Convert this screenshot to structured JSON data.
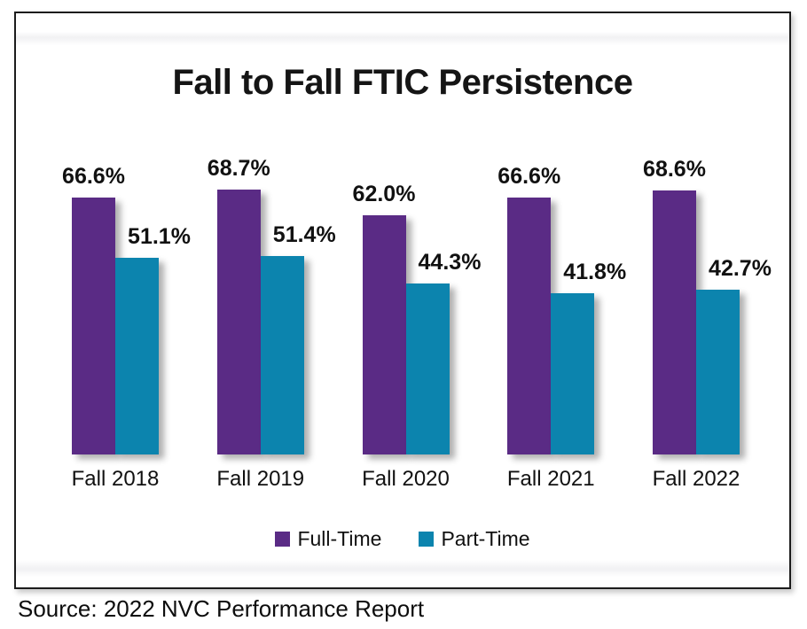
{
  "chart_data": {
    "type": "bar",
    "title": "Fall to Fall FTIC Persistence",
    "categories": [
      "Fall 2018",
      "Fall 2019",
      "Fall 2020",
      "Fall 2021",
      "Fall 2022"
    ],
    "series": [
      {
        "name": "Full-Time",
        "color": "#5A2B85",
        "values": [
          66.6,
          68.7,
          62.0,
          66.6,
          68.6
        ],
        "labels": [
          "66.6%",
          "68.7%",
          "62.0%",
          "66.6%",
          "68.6%"
        ]
      },
      {
        "name": "Part-Time",
        "color": "#0C84AE",
        "values": [
          51.1,
          51.4,
          44.3,
          41.8,
          42.7
        ],
        "labels": [
          "51.1%",
          "51.4%",
          "44.3%",
          "41.8%",
          "42.7%"
        ]
      }
    ],
    "legend": {
      "position": "bottom",
      "items": [
        "Full-Time",
        "Part-Time"
      ]
    },
    "grid": false,
    "y_axis_visible": false,
    "x_axis_visible": false,
    "data_label_position": "outside_end"
  },
  "source_note": "Source: 2022 NVC Performance Report"
}
